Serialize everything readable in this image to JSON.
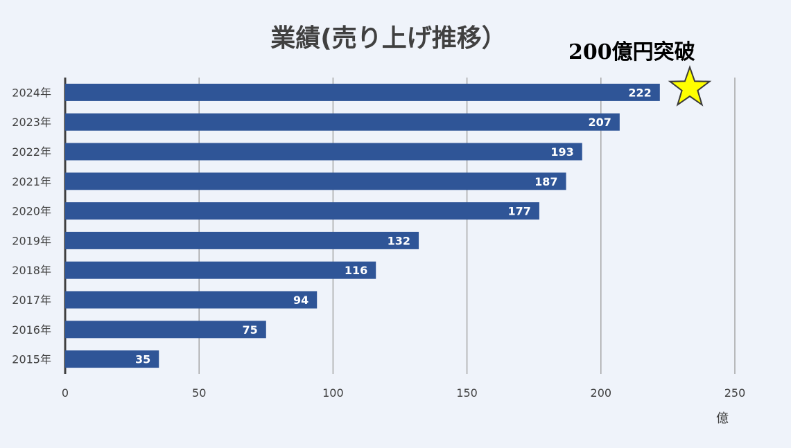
{
  "chart_data": {
    "type": "bar",
    "orientation": "horizontal",
    "title": "業績(売り上げ推移）",
    "categories": [
      "2024年",
      "2023年",
      "2022年",
      "2021年",
      "2020年",
      "2019年",
      "2018年",
      "2017年",
      "2016年",
      "2015年"
    ],
    "values": [
      222,
      207,
      193,
      187,
      177,
      132,
      116,
      94,
      75,
      35
    ],
    "xlabel": "億",
    "ylabel": "",
    "xlim": [
      0,
      250
    ],
    "xticks": [
      "0",
      "50",
      "100",
      "150",
      "200",
      "250"
    ],
    "grid": true,
    "annotation": "200億円突破",
    "colors": {
      "bar": "#2f5597",
      "label": "#ffffff",
      "star": "#ffff00",
      "grid": "#a6a6a6",
      "background": "#eff3fa"
    }
  }
}
